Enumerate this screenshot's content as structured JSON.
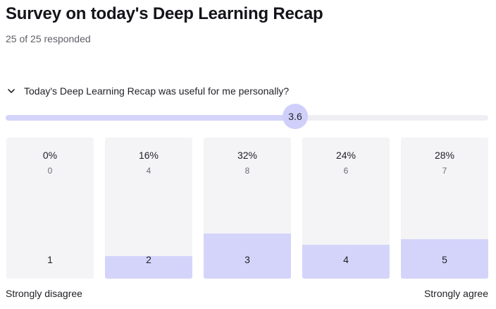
{
  "header": {
    "title": "Survey on today's Deep Learning Recap",
    "responded": "25 of 25 responded"
  },
  "question": {
    "icon": "chevron-down-icon",
    "text": "Today's Deep Learning Recap was useful for me personally?",
    "average": "3.6",
    "average_value": 3.6,
    "scale_min": 1,
    "scale_max": 5,
    "min_label": "Strongly disagree",
    "max_label": "Strongly agree"
  },
  "colors": {
    "accent": "#d4d4fb",
    "bar_background": "#f4f4f6",
    "track": "#efeff3"
  },
  "chart_data": {
    "type": "bar",
    "categories": [
      "1",
      "2",
      "3",
      "4",
      "5"
    ],
    "values": [
      0,
      4,
      8,
      6,
      7
    ],
    "percent_labels": [
      "0%",
      "16%",
      "32%",
      "24%",
      "28%"
    ],
    "count_labels": [
      "0",
      "4",
      "8",
      "6",
      "7"
    ],
    "percent_values": [
      0,
      16,
      32,
      24,
      28
    ],
    "ylim": [
      0,
      100
    ]
  }
}
